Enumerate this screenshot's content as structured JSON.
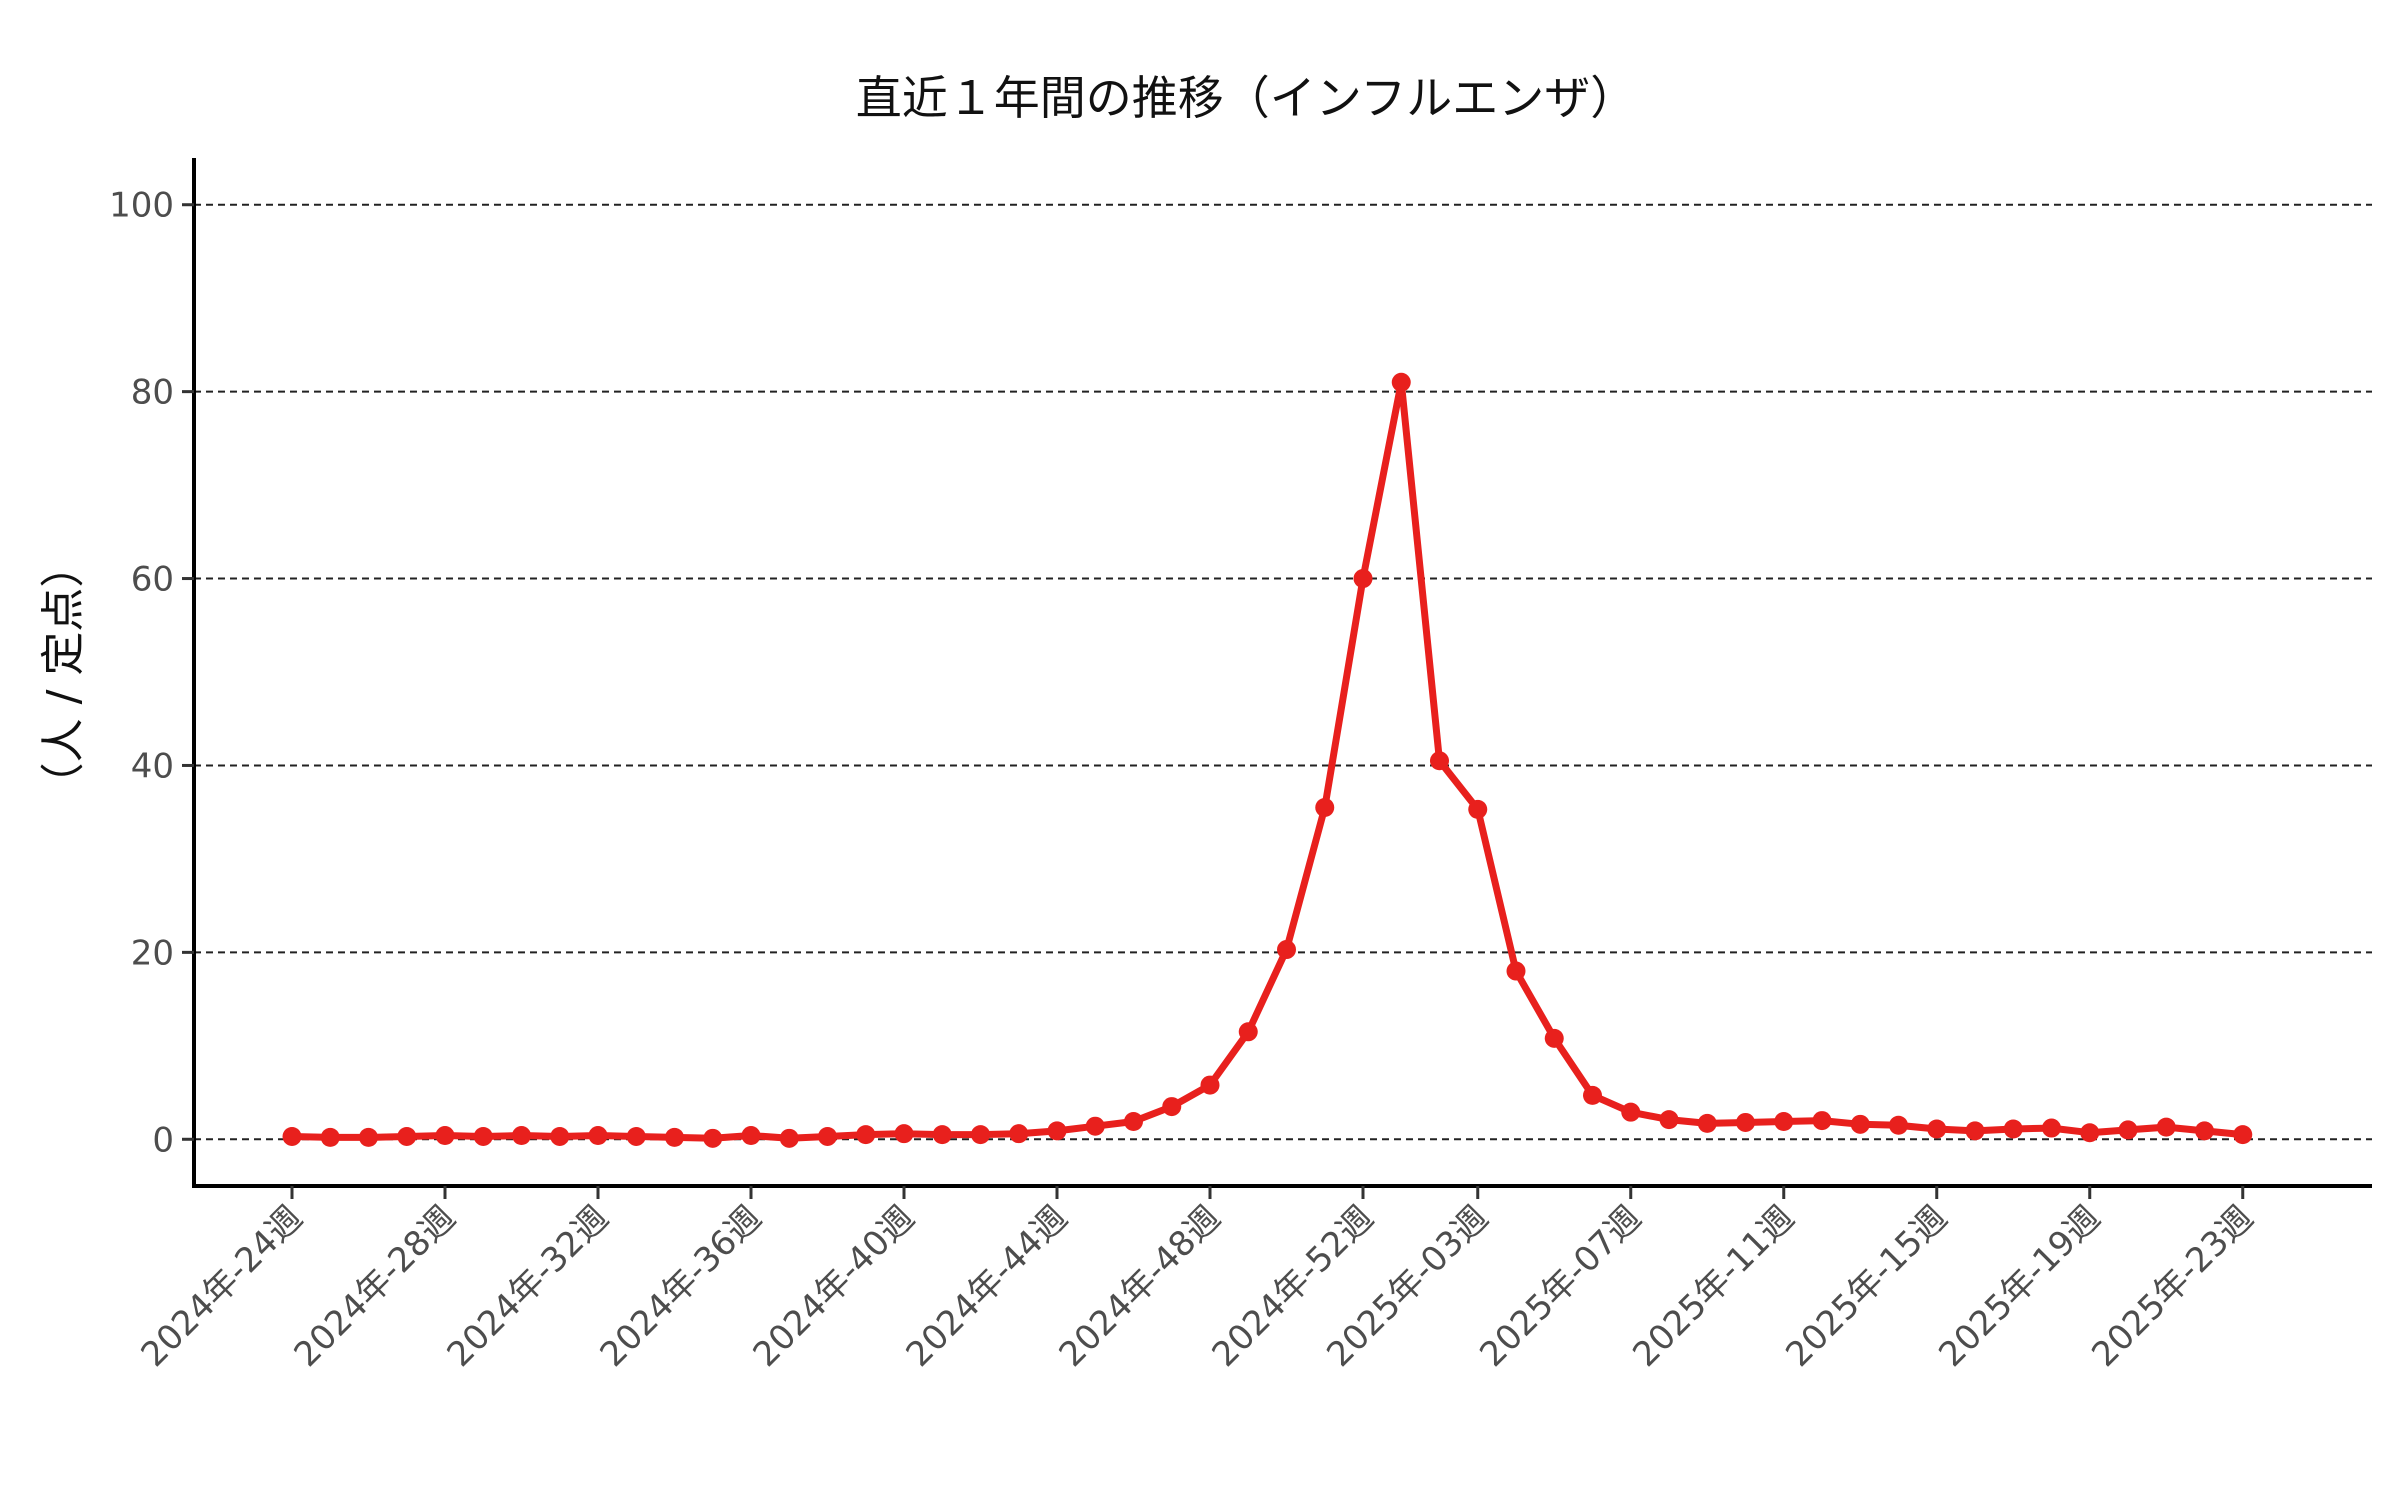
{
  "chart_data": {
    "type": "line",
    "title": "直近１年間の推移（インフルエンザ）",
    "xlabel": "",
    "ylabel": "（人 / 定点）",
    "ylim": [
      -5,
      105
    ],
    "yticks": [
      0,
      20,
      40,
      60,
      80,
      100
    ],
    "grid": "y-dashed",
    "legend": "none",
    "color": "#e8201d",
    "x": [
      "2024年-24週",
      "2024年-25週",
      "2024年-26週",
      "2024年-27週",
      "2024年-28週",
      "2024年-29週",
      "2024年-30週",
      "2024年-31週",
      "2024年-32週",
      "2024年-33週",
      "2024年-34週",
      "2024年-35週",
      "2024年-36週",
      "2024年-37週",
      "2024年-38週",
      "2024年-39週",
      "2024年-40週",
      "2024年-41週",
      "2024年-42週",
      "2024年-43週",
      "2024年-44週",
      "2024年-45週",
      "2024年-46週",
      "2024年-47週",
      "2024年-48週",
      "2024年-49週",
      "2024年-50週",
      "2024年-51週",
      "2024年-52週",
      "2025年-01週",
      "2025年-02週",
      "2025年-03週",
      "2025年-04週",
      "2025年-05週",
      "2025年-06週",
      "2025年-07週",
      "2025年-08週",
      "2025年-09週",
      "2025年-10週",
      "2025年-11週",
      "2025年-12週",
      "2025年-13週",
      "2025年-14週",
      "2025年-15週",
      "2025年-16週",
      "2025年-17週",
      "2025年-18週",
      "2025年-19週",
      "2025年-20週",
      "2025年-21週",
      "2025年-22週",
      "2025年-23週"
    ],
    "xtick_labels": [
      "2024年-24週",
      "2024年-28週",
      "2024年-32週",
      "2024年-36週",
      "2024年-40週",
      "2024年-44週",
      "2024年-48週",
      "2024年-52週",
      "2025年-03週",
      "2025年-07週",
      "2025年-11週",
      "2025年-15週",
      "2025年-19週",
      "2025年-23週"
    ],
    "series": [
      {
        "values": [
          0.3,
          0.2,
          0.2,
          0.3,
          0.4,
          0.3,
          0.4,
          0.3,
          0.4,
          0.3,
          0.2,
          0.1,
          0.4,
          0.1,
          0.3,
          0.5,
          0.6,
          0.5,
          0.5,
          0.6,
          0.9,
          1.4,
          1.9,
          3.5,
          5.8,
          11.5,
          20.3,
          35.5,
          60.0,
          81.0,
          40.5,
          35.3,
          18.0,
          10.8,
          4.7,
          2.9,
          2.1,
          1.7,
          1.8,
          1.9,
          2.0,
          1.6,
          1.5,
          1.1,
          0.9,
          1.1,
          1.2,
          0.7,
          1.0,
          1.3,
          0.9,
          0.5
        ]
      }
    ]
  }
}
